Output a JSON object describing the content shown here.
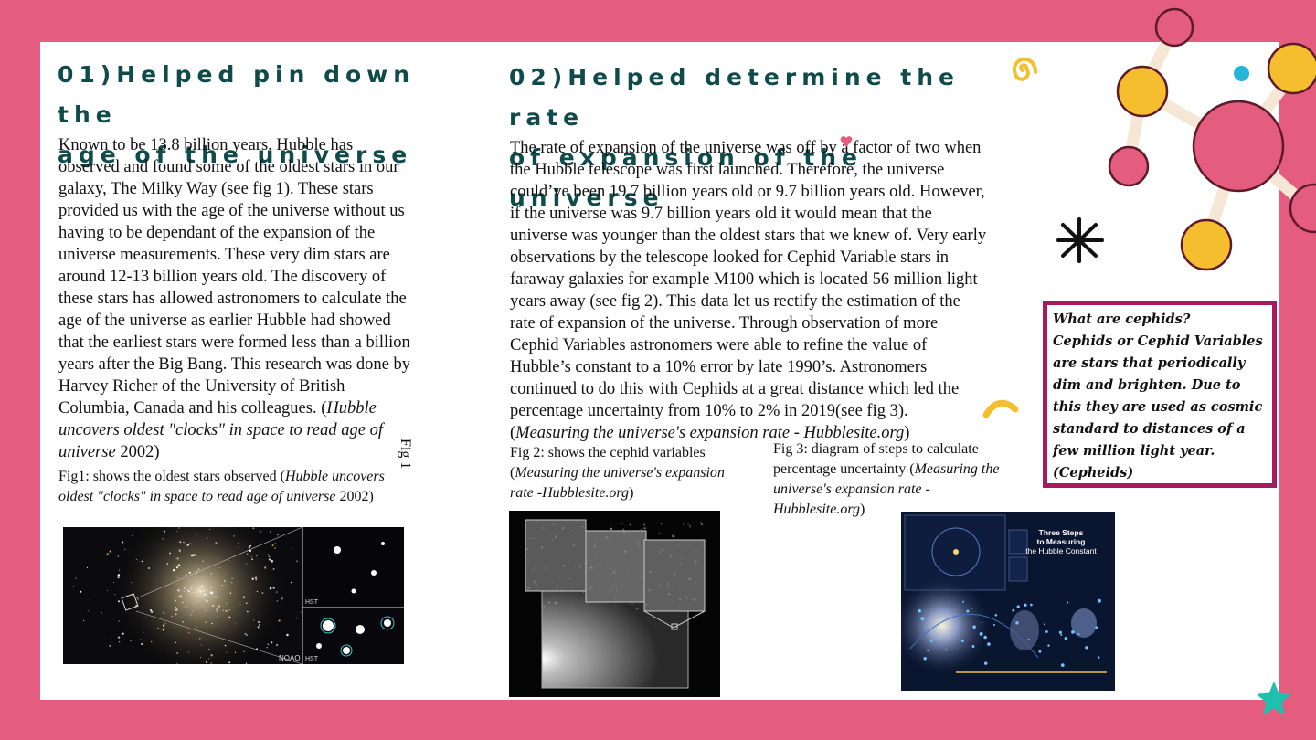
{
  "left": {
    "heading_line1": "01)Helped pin down the",
    "heading_line2": "age of the universe",
    "body_line1": "Known to be 13.8 billion years. Hubble has",
    "body_line2": "observed and found some of the oldest stars in our",
    "body_line3": "galaxy, The Milky Way (see fig 1). These stars",
    "body_line4": "provided us with the age of the universe without us",
    "body_line5": "having to be dependant of the expansion of the",
    "body_line6": "universe measurements. These very dim stars are",
    "body_line7": "around 12-13 billion years old. The discovery of",
    "body_line8": "these stars has allowed astronomers to calculate the",
    "body_line9": "age of the universe as earlier Hubble had showed",
    "body_line10": "that the earliest stars were formed less than a billion",
    "body_line11": "years after the Big Bang. This research was done by",
    "body_line12": "Harvey Richer of the University of British",
    "body_line13_a": "Columbia, Canada and his colleagues. (",
    "body_line13_b": "Hubble",
    "body_line14": "uncovers oldest \"clocks\" in space to read age of",
    "body_line15_a": "universe",
    "body_line15_b": " 2002)",
    "fig1_side_label": "Fig 1",
    "caption_a": "Fig1: shows the oldest stars observed (",
    "caption_b": "Hubble uncovers",
    "caption_c": "oldest \"clocks\" in space to read age of universe",
    "caption_d": " 2002)",
    "image_label_noao": "NOAO",
    "image_label_hst1": "HST",
    "image_label_hst2": "HST"
  },
  "right": {
    "heading_line1": "02)Helped determine the rate",
    "heading_line2": "of expansion of the universe",
    "body_line1": "The rate of expansion of the universe was off by a factor of two when",
    "body_line2": "the Hubble telescope was first launched. Therefore, the universe",
    "body_line3": "could’ve been 19.7 billion years old or 9.7 billion years old. However,",
    "body_line4": "if the universe was 9.7 billion years old it would mean that the",
    "body_line5": "universe was younger than the oldest stars that we knew of. Very early",
    "body_line6": "observations by the telescope looked for Cephid Variable stars in",
    "body_line7": "faraway galaxies for example M100 which is located 56 million light",
    "body_line8": "years away (see fig 2). This data let us rectify the estimation of the",
    "body_line9": "rate of expansion of the universe. Through observation of more",
    "body_line10": "Cephid Variables astronomers were able to refine the value of",
    "body_line11": "Hubble’s constant to a 10% error by late 1990’s. Astronomers",
    "body_line12": "continued to do this with Cephids at a great distance which led the",
    "body_line13": "percentage uncertainty from 10% to 2% in 2019(see fig 3).",
    "body_line14_a": "(",
    "body_line14_b": "Measuring the universe's expansion rate - Hubblesite.org",
    "body_line14_c": ")",
    "fig2_caption_line1": "Fig 2: shows the cephid variables",
    "fig2_caption_line2": "Measuring the universe's expansion",
    "fig2_caption_line3": " rate -Hubblesite.org",
    "fig3_caption_line1": "Fig 3: diagram of steps to calculate",
    "fig3_caption_line2_a": "percentage uncertainty (",
    "fig3_caption_line2_b": "Measuring the",
    "fig3_caption_line3": "universe's expansion rate -",
    "fig3_caption_line4_a": "Hubblesite.org",
    "fig3_caption_line4_b": ")",
    "fig3_title_line1": "Three Steps",
    "fig3_title_line2": "to Measuring",
    "fig3_title_line3": "the Hubble Constant"
  },
  "infobox": {
    "line1": "What are cephids?",
    "line2": "Cephids or Cephid Variables",
    "line3": "are stars that periodically",
    "line4": "dim and brighten. Due to",
    "line5": "this they are used as cosmic",
    "line6": "standard to distances of a",
    "line7": "few million light year.",
    "line8": "(Cepheids)"
  },
  "colors": {
    "frame": "#e45c7e",
    "heading": "#0e4b4a",
    "infobox_border": "#a8195d",
    "molecule_pink": "#e45c7e",
    "molecule_yellow": "#f5be2e",
    "accent_teal": "#21bfae",
    "accent_cyan": "#26b5d8"
  }
}
